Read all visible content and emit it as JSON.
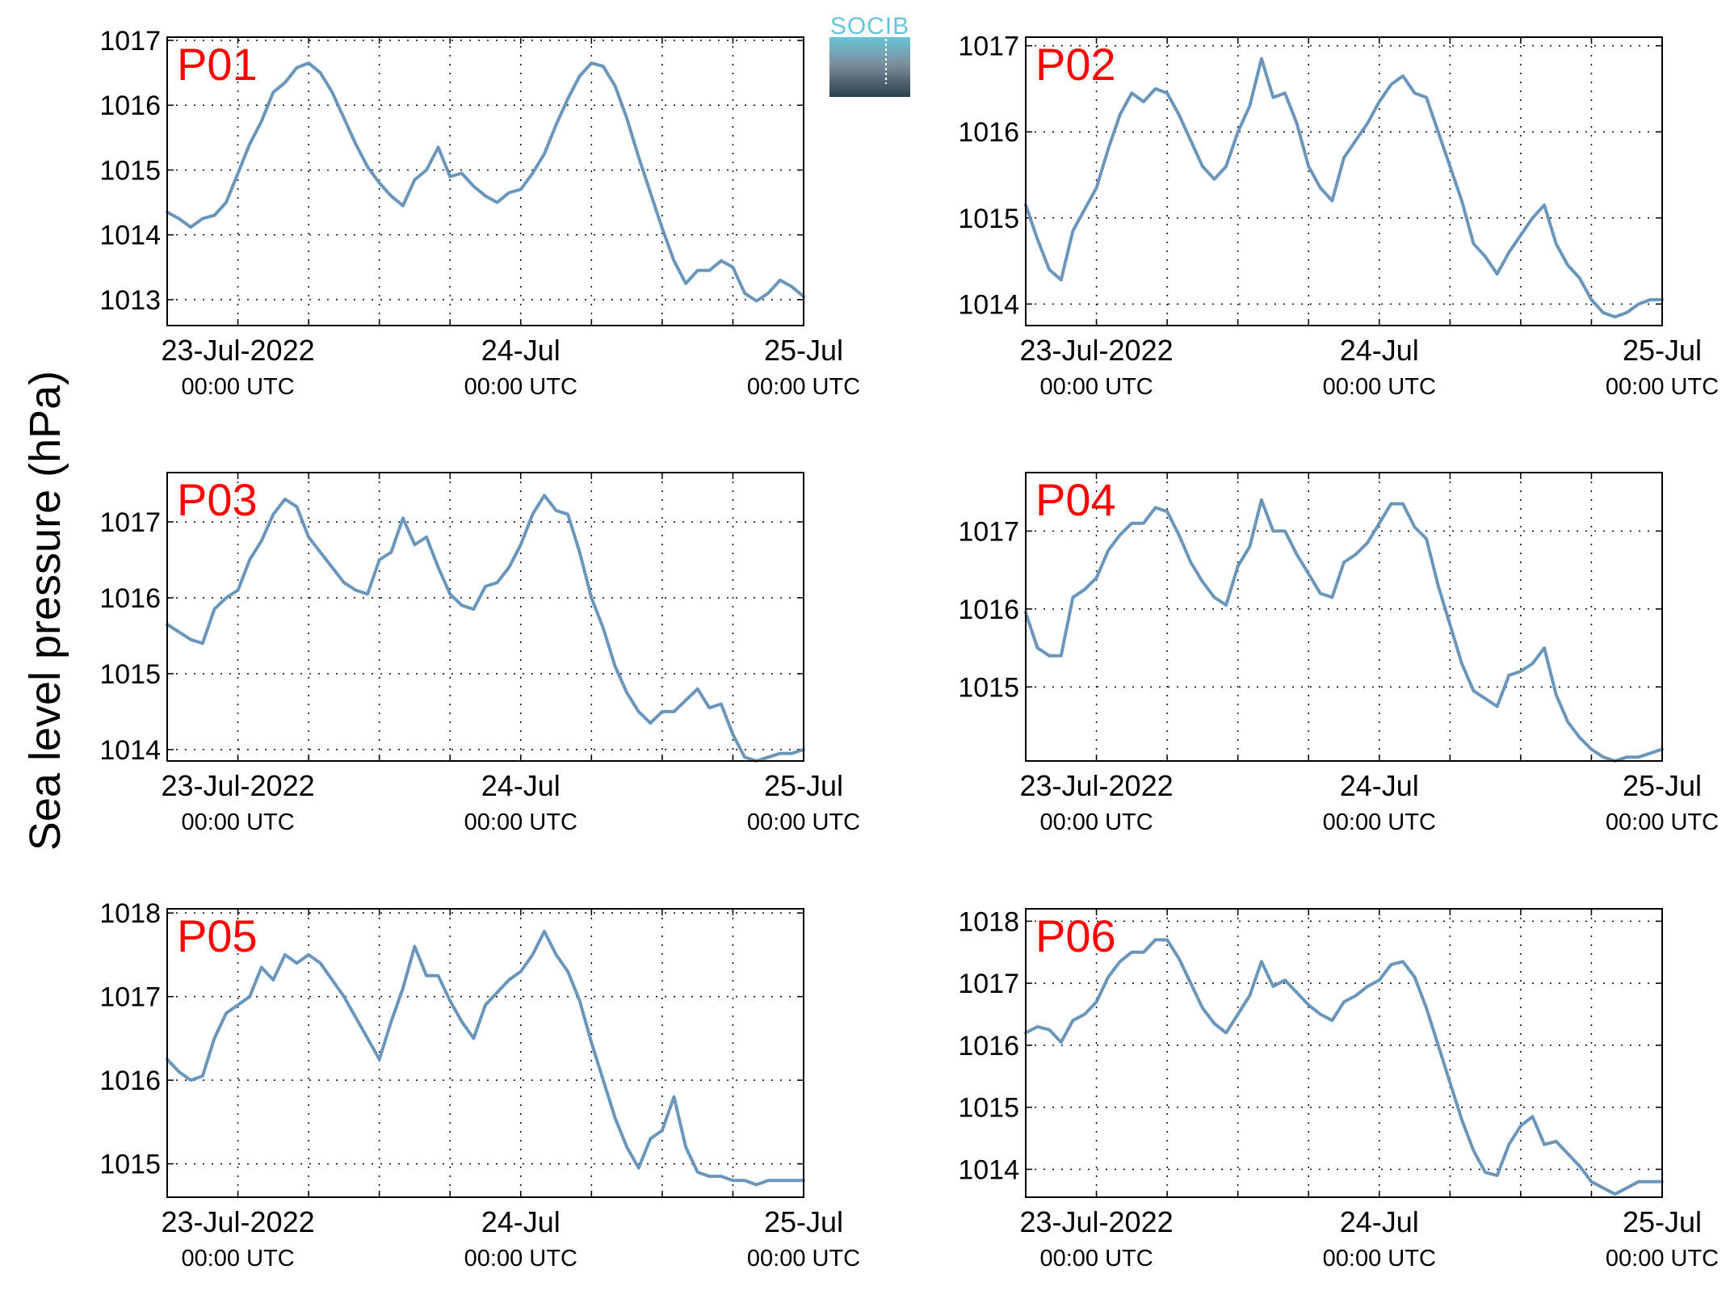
{
  "figure": {
    "ylabel": "Sea level pressure (hPa)",
    "logo_text": "SOCIB",
    "line_color": "#6b96bb",
    "label_color": "#ff0000",
    "x_tick_labels": [
      {
        "date": "23-Jul-2022",
        "time": "00:00 UTC"
      },
      {
        "date": "24-Jul",
        "time": "00:00 UTC"
      },
      {
        "date": "25-Jul",
        "time": "00:00 UTC"
      }
    ]
  },
  "chart_data": [
    {
      "type": "line",
      "label": "P01",
      "grid": true,
      "x_unit": "hours since 23-Jul-2022 00:00 UTC",
      "xlim": [
        -6,
        48
      ],
      "ylim": [
        1012.6,
        1017.05
      ],
      "yticks": [
        1013,
        1014,
        1015,
        1016,
        1017
      ],
      "x": [
        -6,
        -5,
        -4,
        -3,
        -2,
        -1,
        0,
        1,
        2,
        3,
        4,
        5,
        6,
        7,
        8,
        9,
        10,
        11,
        12,
        13,
        14,
        15,
        16,
        17,
        18,
        19,
        20,
        21,
        22,
        23,
        24,
        25,
        26,
        27,
        28,
        29,
        30,
        31,
        32,
        33,
        34,
        35,
        36,
        37,
        38,
        39,
        40,
        41,
        42,
        43,
        44,
        45,
        46,
        47,
        48
      ],
      "y": [
        1014.35,
        1014.25,
        1014.12,
        1014.25,
        1014.3,
        1014.5,
        1014.95,
        1015.4,
        1015.75,
        1016.2,
        1016.35,
        1016.58,
        1016.65,
        1016.5,
        1016.2,
        1015.8,
        1015.4,
        1015.05,
        1014.8,
        1014.6,
        1014.45,
        1014.85,
        1015.0,
        1015.35,
        1014.9,
        1014.95,
        1014.75,
        1014.6,
        1014.5,
        1014.65,
        1014.7,
        1014.95,
        1015.25,
        1015.7,
        1016.1,
        1016.45,
        1016.65,
        1016.6,
        1016.3,
        1015.8,
        1015.2,
        1014.65,
        1014.1,
        1013.6,
        1013.25,
        1013.45,
        1013.45,
        1013.6,
        1013.5,
        1013.1,
        1012.98,
        1013.1,
        1013.3,
        1013.2,
        1013.05
      ]
    },
    {
      "type": "line",
      "label": "P02",
      "grid": true,
      "x_unit": "hours since 23-Jul-2022 00:00 UTC",
      "xlim": [
        -6,
        48
      ],
      "ylim": [
        1013.75,
        1017.1
      ],
      "yticks": [
        1014,
        1015,
        1016,
        1017
      ],
      "x": [
        -6,
        -5,
        -4,
        -3,
        -2,
        -1,
        0,
        1,
        2,
        3,
        4,
        5,
        6,
        7,
        8,
        9,
        10,
        11,
        12,
        13,
        14,
        15,
        16,
        17,
        18,
        19,
        20,
        21,
        22,
        23,
        24,
        25,
        26,
        27,
        28,
        29,
        30,
        31,
        32,
        33,
        34,
        35,
        36,
        37,
        38,
        39,
        40,
        41,
        42,
        43,
        44,
        45,
        46,
        47,
        48
      ],
      "y": [
        1015.15,
        1014.75,
        1014.4,
        1014.28,
        1014.85,
        1015.1,
        1015.35,
        1015.8,
        1016.2,
        1016.45,
        1016.35,
        1016.5,
        1016.45,
        1016.2,
        1015.9,
        1015.6,
        1015.45,
        1015.6,
        1016.0,
        1016.3,
        1016.85,
        1016.4,
        1016.45,
        1016.1,
        1015.6,
        1015.35,
        1015.2,
        1015.7,
        1015.9,
        1016.1,
        1016.35,
        1016.55,
        1016.65,
        1016.45,
        1016.4,
        1016.0,
        1015.6,
        1015.2,
        1014.7,
        1014.55,
        1014.35,
        1014.6,
        1014.8,
        1015.0,
        1015.15,
        1014.7,
        1014.45,
        1014.3,
        1014.05,
        1013.9,
        1013.85,
        1013.9,
        1014.0,
        1014.05,
        1014.05
      ]
    },
    {
      "type": "line",
      "label": "P03",
      "grid": true,
      "x_unit": "hours since 23-Jul-2022 00:00 UTC",
      "xlim": [
        -6,
        48
      ],
      "ylim": [
        1013.85,
        1017.65
      ],
      "yticks": [
        1014,
        1015,
        1016,
        1017
      ],
      "x": [
        -6,
        -5,
        -4,
        -3,
        -2,
        -1,
        0,
        1,
        2,
        3,
        4,
        5,
        6,
        7,
        8,
        9,
        10,
        11,
        12,
        13,
        14,
        15,
        16,
        17,
        18,
        19,
        20,
        21,
        22,
        23,
        24,
        25,
        26,
        27,
        28,
        29,
        30,
        31,
        32,
        33,
        34,
        35,
        36,
        37,
        38,
        39,
        40,
        41,
        42,
        43,
        44,
        45,
        46,
        47,
        48
      ],
      "y": [
        1015.65,
        1015.55,
        1015.45,
        1015.4,
        1015.85,
        1016.0,
        1016.1,
        1016.5,
        1016.75,
        1017.1,
        1017.3,
        1017.2,
        1016.8,
        1016.6,
        1016.4,
        1016.2,
        1016.1,
        1016.05,
        1016.5,
        1016.6,
        1017.05,
        1016.7,
        1016.8,
        1016.4,
        1016.05,
        1015.9,
        1015.85,
        1016.15,
        1016.2,
        1016.4,
        1016.7,
        1017.1,
        1017.35,
        1017.15,
        1017.1,
        1016.6,
        1016.0,
        1015.6,
        1015.1,
        1014.75,
        1014.5,
        1014.35,
        1014.5,
        1014.5,
        1014.65,
        1014.8,
        1014.55,
        1014.6,
        1014.2,
        1013.9,
        1013.85,
        1013.9,
        1013.95,
        1013.95,
        1014.0
      ]
    },
    {
      "type": "line",
      "label": "P04",
      "grid": true,
      "x_unit": "hours since 23-Jul-2022 00:00 UTC",
      "xlim": [
        -6,
        48
      ],
      "ylim": [
        1014.05,
        1017.75
      ],
      "yticks": [
        1015,
        1016,
        1017
      ],
      "x": [
        -6,
        -5,
        -4,
        -3,
        -2,
        -1,
        0,
        1,
        2,
        3,
        4,
        5,
        6,
        7,
        8,
        9,
        10,
        11,
        12,
        13,
        14,
        15,
        16,
        17,
        18,
        19,
        20,
        21,
        22,
        23,
        24,
        25,
        26,
        27,
        28,
        29,
        30,
        31,
        32,
        33,
        34,
        35,
        36,
        37,
        38,
        39,
        40,
        41,
        42,
        43,
        44,
        45,
        46,
        47,
        48
      ],
      "y": [
        1015.95,
        1015.5,
        1015.4,
        1015.4,
        1016.15,
        1016.25,
        1016.4,
        1016.75,
        1016.95,
        1017.1,
        1017.1,
        1017.3,
        1017.25,
        1016.95,
        1016.6,
        1016.35,
        1016.15,
        1016.05,
        1016.55,
        1016.8,
        1017.4,
        1017.0,
        1017.0,
        1016.7,
        1016.45,
        1016.2,
        1016.15,
        1016.6,
        1016.7,
        1016.85,
        1017.1,
        1017.35,
        1017.35,
        1017.05,
        1016.9,
        1016.3,
        1015.8,
        1015.3,
        1014.95,
        1014.85,
        1014.75,
        1015.15,
        1015.2,
        1015.3,
        1015.5,
        1014.9,
        1014.55,
        1014.35,
        1014.2,
        1014.1,
        1014.05,
        1014.1,
        1014.1,
        1014.15,
        1014.2
      ]
    },
    {
      "type": "line",
      "label": "P05",
      "grid": true,
      "x_unit": "hours since 23-Jul-2022 00:00 UTC",
      "xlim": [
        -6,
        48
      ],
      "ylim": [
        1014.6,
        1018.05
      ],
      "yticks": [
        1015,
        1016,
        1017,
        1018
      ],
      "x": [
        -6,
        -5,
        -4,
        -3,
        -2,
        -1,
        0,
        1,
        2,
        3,
        4,
        5,
        6,
        7,
        8,
        9,
        10,
        11,
        12,
        13,
        14,
        15,
        16,
        17,
        18,
        19,
        20,
        21,
        22,
        23,
        24,
        25,
        26,
        27,
        28,
        29,
        30,
        31,
        32,
        33,
        34,
        35,
        36,
        37,
        38,
        39,
        40,
        41,
        42,
        43,
        44,
        45,
        46,
        47,
        48
      ],
      "y": [
        1016.25,
        1016.1,
        1016.0,
        1016.05,
        1016.5,
        1016.8,
        1016.9,
        1017.0,
        1017.35,
        1017.2,
        1017.5,
        1017.4,
        1017.5,
        1017.4,
        1017.2,
        1017.0,
        1016.75,
        1016.5,
        1016.25,
        1016.7,
        1017.1,
        1017.6,
        1017.25,
        1017.25,
        1016.95,
        1016.7,
        1016.5,
        1016.9,
        1017.05,
        1017.2,
        1017.3,
        1017.5,
        1017.78,
        1017.5,
        1017.3,
        1016.95,
        1016.45,
        1016.0,
        1015.55,
        1015.2,
        1014.95,
        1015.3,
        1015.4,
        1015.8,
        1015.2,
        1014.9,
        1014.85,
        1014.85,
        1014.8,
        1014.8,
        1014.75,
        1014.8,
        1014.8,
        1014.8,
        1014.8
      ]
    },
    {
      "type": "line",
      "label": "P06",
      "grid": true,
      "x_unit": "hours since 23-Jul-2022 00:00 UTC",
      "xlim": [
        -6,
        48
      ],
      "ylim": [
        1013.55,
        1018.2
      ],
      "yticks": [
        1014,
        1015,
        1016,
        1017,
        1018
      ],
      "x": [
        -6,
        -5,
        -4,
        -3,
        -2,
        -1,
        0,
        1,
        2,
        3,
        4,
        5,
        6,
        7,
        8,
        9,
        10,
        11,
        12,
        13,
        14,
        15,
        16,
        17,
        18,
        19,
        20,
        21,
        22,
        23,
        24,
        25,
        26,
        27,
        28,
        29,
        30,
        31,
        32,
        33,
        34,
        35,
        36,
        37,
        38,
        39,
        40,
        41,
        42,
        43,
        44,
        45,
        46,
        47,
        48
      ],
      "y": [
        1016.2,
        1016.3,
        1016.25,
        1016.05,
        1016.4,
        1016.5,
        1016.7,
        1017.1,
        1017.35,
        1017.5,
        1017.5,
        1017.7,
        1017.7,
        1017.4,
        1017.0,
        1016.6,
        1016.35,
        1016.2,
        1016.5,
        1016.8,
        1017.35,
        1016.95,
        1017.05,
        1016.85,
        1016.65,
        1016.5,
        1016.4,
        1016.7,
        1016.8,
        1016.95,
        1017.05,
        1017.3,
        1017.35,
        1017.1,
        1016.6,
        1016.0,
        1015.4,
        1014.8,
        1014.3,
        1013.95,
        1013.9,
        1014.4,
        1014.7,
        1014.85,
        1014.4,
        1014.45,
        1014.25,
        1014.05,
        1013.8,
        1013.7,
        1013.6,
        1013.7,
        1013.8,
        1013.8,
        1013.8
      ]
    }
  ]
}
